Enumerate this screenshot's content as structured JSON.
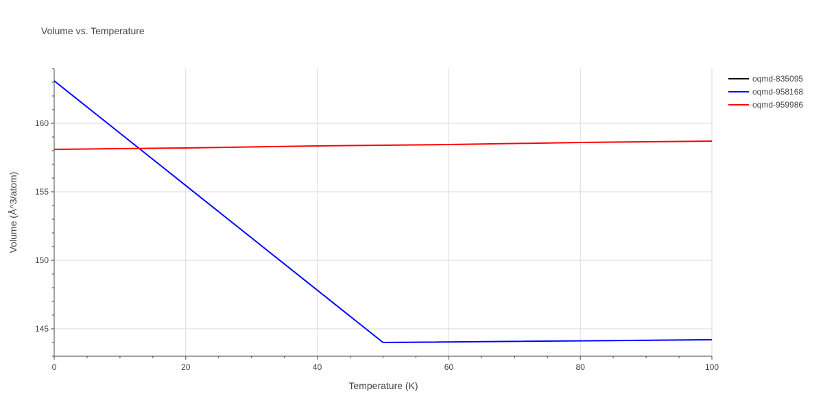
{
  "chart_data": {
    "type": "line",
    "title": "Volume vs. Temperature",
    "xlabel": "Temperature (K)",
    "ylabel": "Volume (Å^3/atom)",
    "xlim": [
      0,
      100
    ],
    "ylim": [
      143,
      164
    ],
    "xticks": [
      0,
      20,
      40,
      60,
      80,
      100
    ],
    "yticks": [
      145,
      150,
      155,
      160
    ],
    "grid": true,
    "legend_position": "top-right",
    "series": [
      {
        "name": "oqmd-835095",
        "color": "#000000",
        "x": [],
        "y": []
      },
      {
        "name": "oqmd-958168",
        "color": "#0000ff",
        "x": [
          0,
          50,
          100
        ],
        "y": [
          163.1,
          144.0,
          144.2
        ]
      },
      {
        "name": "oqmd-959986",
        "color": "#ff0000",
        "x": [
          0,
          20,
          40,
          60,
          80,
          100
        ],
        "y": [
          158.1,
          158.2,
          158.35,
          158.45,
          158.6,
          158.7
        ]
      }
    ]
  }
}
